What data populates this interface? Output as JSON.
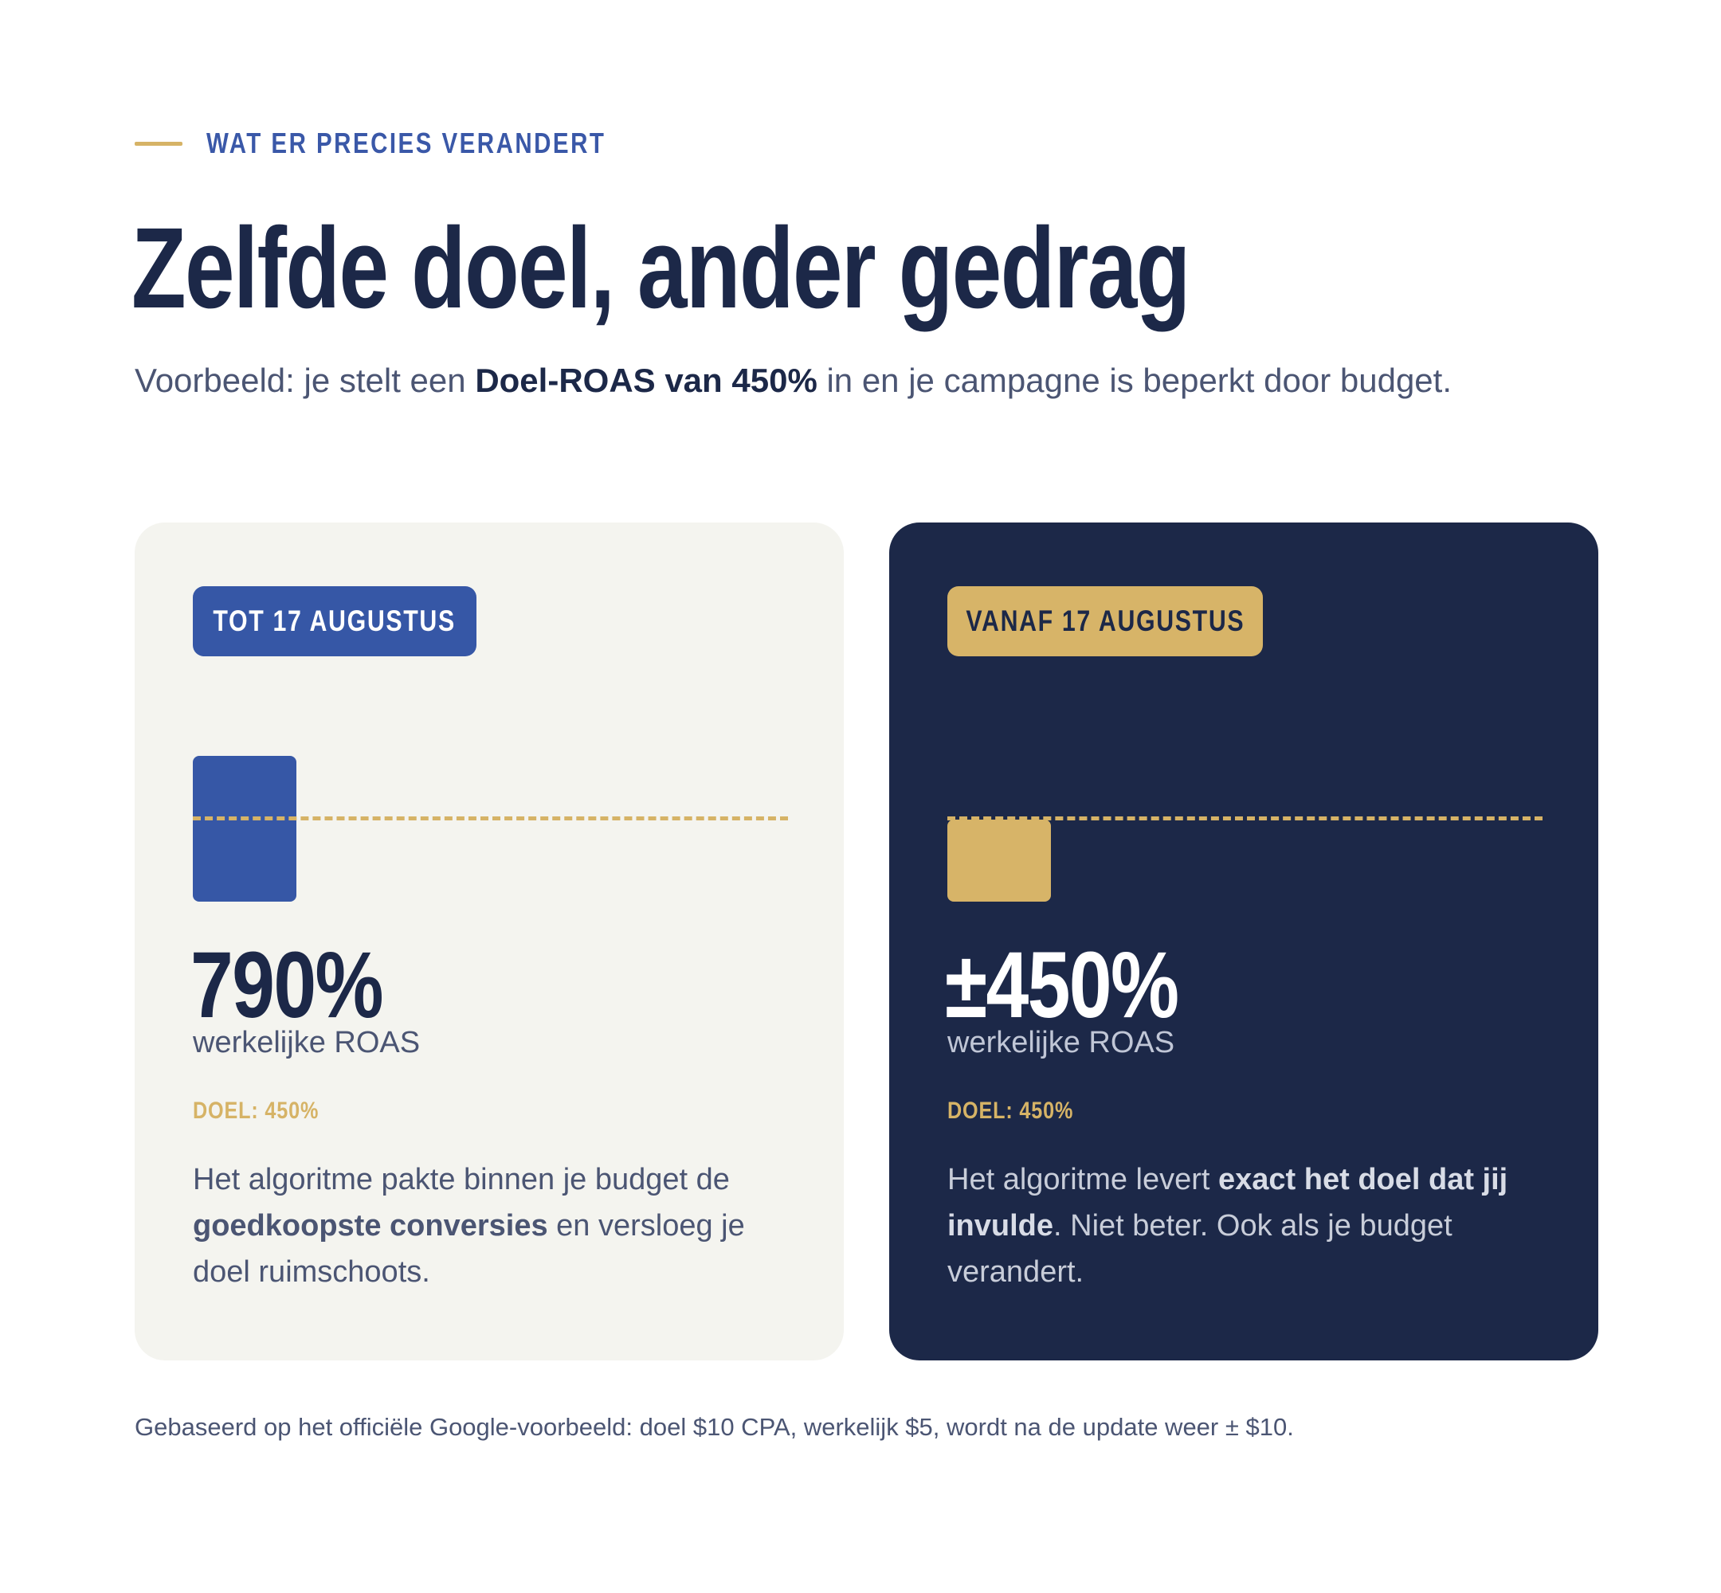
{
  "section": {
    "eyebrow": "WAT ER PRECIES VERANDERT",
    "title": "Zelfde doel, ander gedrag",
    "intro_before": "Voorbeeld: je stelt een ",
    "intro_bold": "Doel-ROAS van 450%",
    "intro_after": " in en je campagne is beperkt door budget."
  },
  "cards": {
    "before": {
      "badge": "TOT 17 AUGUSTUS",
      "value": "790%",
      "value_label": "werkelijke ROAS",
      "goal": "DOEL: 450%",
      "desc_1": "Het algoritme pakte binnen je budget de ",
      "desc_bold": "goedkoopste conversies",
      "desc_2": " en versloeg je doel ruimschoots."
    },
    "after": {
      "badge": "VANAF 17 AUGUSTUS",
      "value": "±450%",
      "value_label": "werkelijke ROAS",
      "goal": "DOEL: 450%",
      "desc_1": "Het algoritme levert ",
      "desc_bold": "exact het doel dat jij invulde",
      "desc_2": ". Niet beter. Ook als je budget verandert."
    }
  },
  "footnote": "Gebaseerd op het officiële Google-voorbeeld: doel $10 CPA, werkelijk $5, wordt na de update weer ± $10.",
  "colors": {
    "navy": "#1c2848",
    "blue": "#3657a6",
    "gold": "#d7b468",
    "cream": "#f4f4ef"
  }
}
